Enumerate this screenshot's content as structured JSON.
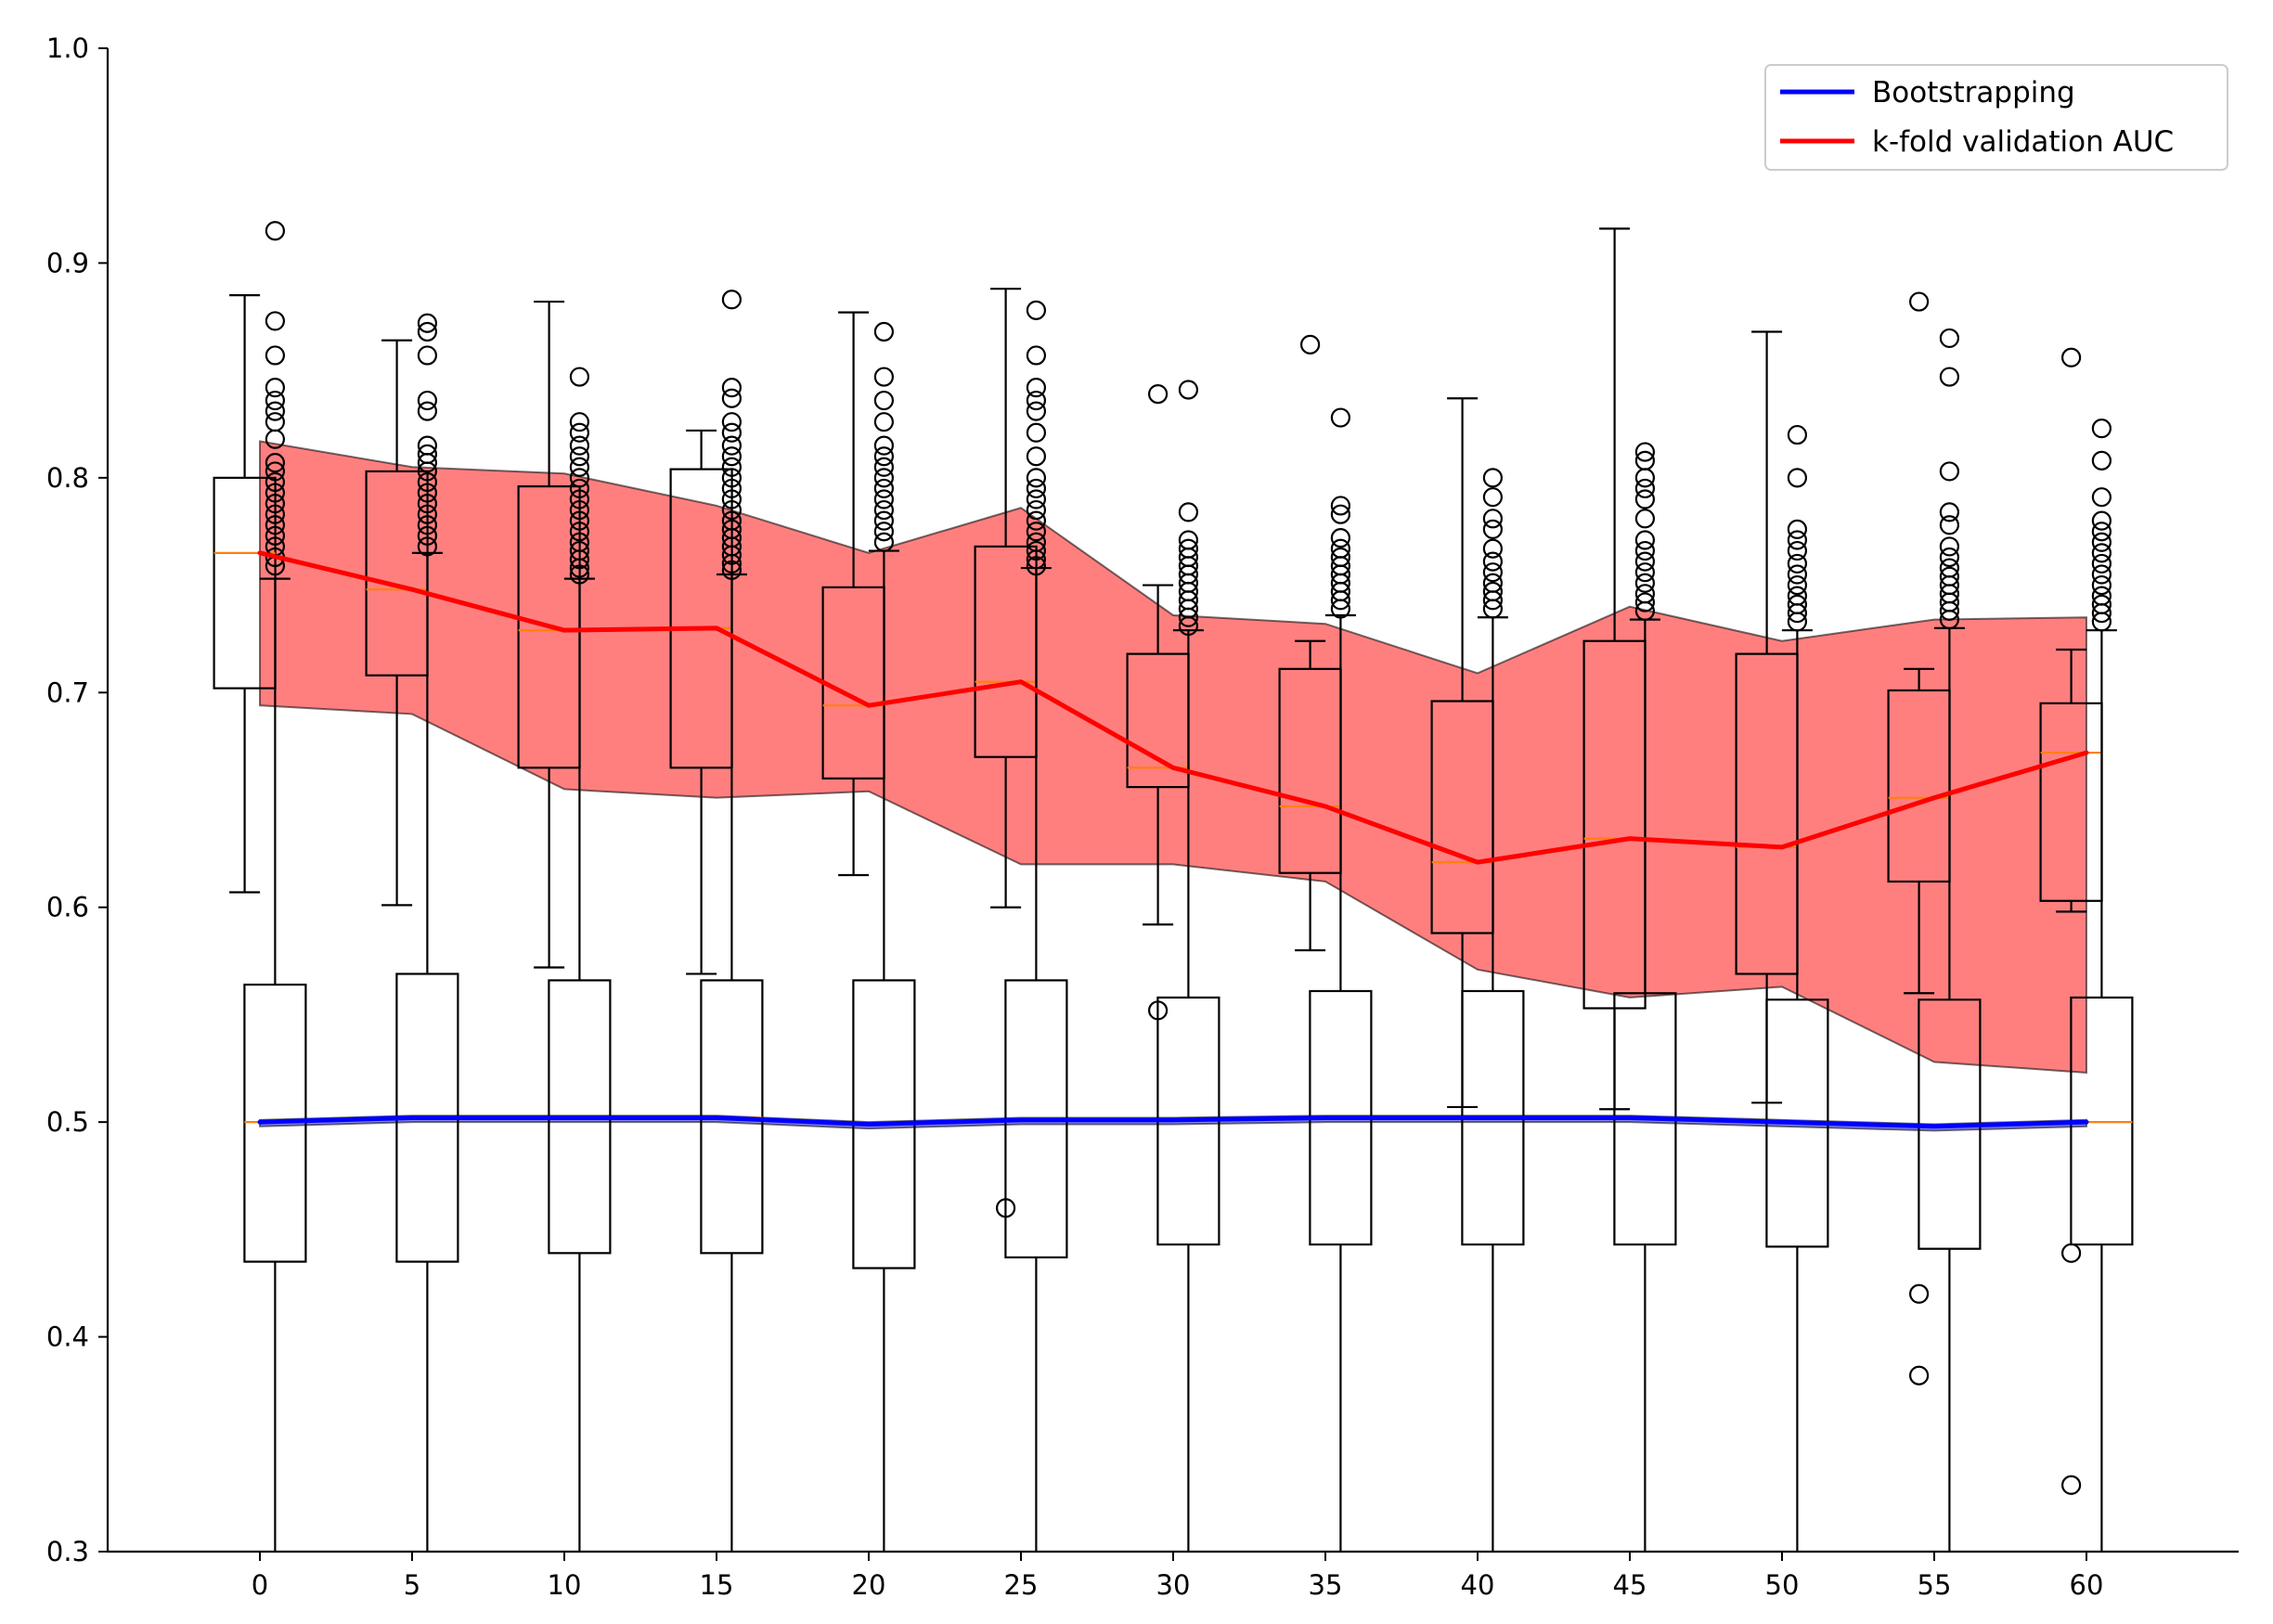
{
  "chart_data": {
    "type": "box",
    "title": "",
    "xlabel": "",
    "ylabel": "",
    "xlim": [
      -5,
      65
    ],
    "ylim": [
      0.3,
      1.0
    ],
    "x_ticks": [
      0,
      5,
      10,
      15,
      20,
      25,
      30,
      35,
      40,
      45,
      50,
      55,
      60
    ],
    "y_ticks": [
      0.3,
      0.4,
      0.5,
      0.6,
      0.7,
      0.8,
      0.9,
      1.0
    ],
    "y_tick_labels": [
      "0.3",
      "0.4",
      "0.5",
      "0.6",
      "0.7",
      "0.8",
      "0.9",
      "1.0"
    ],
    "legend": {
      "placement": "top-right",
      "entries": [
        {
          "label": "Bootstrapping",
          "color": "#0000ff"
        },
        {
          "label": "k-fold validation AUC",
          "color": "#ff0000"
        }
      ]
    },
    "colors": {
      "band": "#ff0000",
      "median": "#ff7f0e",
      "box": "#000000"
    },
    "series": [
      {
        "name": "k-fold validation AUC",
        "color": "#ff0000",
        "x": [
          0,
          5,
          10,
          15,
          20,
          25,
          30,
          35,
          40,
          45,
          50,
          55,
          60
        ],
        "mean": [
          0.765,
          0.748,
          0.729,
          0.73,
          0.694,
          0.705,
          0.665,
          0.647,
          0.621,
          0.632,
          0.628,
          0.651,
          0.672
        ],
        "band_upper": [
          0.817,
          0.805,
          0.802,
          0.787,
          0.765,
          0.786,
          0.736,
          0.732,
          0.709,
          0.74,
          0.724,
          0.734,
          0.735
        ],
        "band_lower": [
          0.694,
          0.69,
          0.655,
          0.651,
          0.654,
          0.62,
          0.62,
          0.612,
          0.571,
          0.558,
          0.563,
          0.528,
          0.523
        ],
        "boxes": [
          {
            "x": -0.5,
            "q1": 0.702,
            "q3": 0.8,
            "median": 0.765,
            "whislo": 0.607,
            "whishi": 0.885,
            "fliers": []
          },
          {
            "x": 4.5,
            "q1": 0.708,
            "q3": 0.803,
            "median": 0.748,
            "whislo": 0.601,
            "whishi": 0.864,
            "fliers": []
          },
          {
            "x": 9.5,
            "q1": 0.665,
            "q3": 0.796,
            "median": 0.729,
            "whislo": 0.572,
            "whishi": 0.882,
            "fliers": []
          },
          {
            "x": 14.5,
            "q1": 0.665,
            "q3": 0.804,
            "median": 0.73,
            "whislo": 0.569,
            "whishi": 0.822,
            "fliers": []
          },
          {
            "x": 19.5,
            "q1": 0.66,
            "q3": 0.749,
            "median": 0.694,
            "whislo": 0.615,
            "whishi": 0.877,
            "fliers": []
          },
          {
            "x": 24.5,
            "q1": 0.67,
            "q3": 0.768,
            "median": 0.705,
            "whislo": 0.6,
            "whishi": 0.888,
            "fliers": [
              0.46
            ]
          },
          {
            "x": 29.5,
            "q1": 0.656,
            "q3": 0.718,
            "median": 0.665,
            "whislo": 0.592,
            "whishi": 0.75,
            "fliers": [
              0.839,
              0.552
            ]
          },
          {
            "x": 34.5,
            "q1": 0.616,
            "q3": 0.711,
            "median": 0.647,
            "whislo": 0.58,
            "whishi": 0.724,
            "fliers": [
              0.862
            ]
          },
          {
            "x": 39.5,
            "q1": 0.588,
            "q3": 0.696,
            "median": 0.621,
            "whislo": 0.507,
            "whishi": 0.837,
            "fliers": []
          },
          {
            "x": 44.5,
            "q1": 0.553,
            "q3": 0.724,
            "median": 0.632,
            "whislo": 0.506,
            "whishi": 0.916,
            "fliers": []
          },
          {
            "x": 49.5,
            "q1": 0.569,
            "q3": 0.718,
            "median": 0.628,
            "whislo": 0.509,
            "whishi": 0.868,
            "fliers": []
          },
          {
            "x": 54.5,
            "q1": 0.612,
            "q3": 0.701,
            "median": 0.651,
            "whislo": 0.56,
            "whishi": 0.711,
            "fliers": [
              0.882,
              0.42,
              0.382
            ]
          },
          {
            "x": 59.5,
            "q1": 0.603,
            "q3": 0.695,
            "median": 0.672,
            "whislo": 0.598,
            "whishi": 0.72,
            "fliers": [
              0.856,
              0.439,
              0.331
            ]
          }
        ]
      },
      {
        "name": "Bootstrapping",
        "color": "#0000ff",
        "x": [
          0,
          5,
          10,
          15,
          20,
          25,
          30,
          35,
          40,
          45,
          50,
          55,
          60
        ],
        "mean": [
          0.5,
          0.502,
          0.502,
          0.502,
          0.499,
          0.501,
          0.501,
          0.502,
          0.502,
          0.502,
          0.5,
          0.498,
          0.5
        ],
        "band_upper": [
          0.501,
          0.503,
          0.503,
          0.503,
          0.5,
          0.502,
          0.502,
          0.503,
          0.503,
          0.503,
          0.501,
          0.499,
          0.501
        ],
        "band_lower": [
          0.498,
          0.5,
          0.5,
          0.5,
          0.497,
          0.499,
          0.499,
          0.5,
          0.5,
          0.5,
          0.498,
          0.496,
          0.498
        ],
        "boxes": [
          {
            "x": 0.5,
            "q1": 0.435,
            "q3": 0.564,
            "median": 0.5,
            "whislo": 0.29,
            "whishi": 0.753,
            "fliers": [
              0.915,
              0.873,
              0.857,
              0.842,
              0.836,
              0.831,
              0.826,
              0.818,
              0.807,
              0.803,
              0.798,
              0.793,
              0.788,
              0.783,
              0.778,
              0.773,
              0.768,
              0.763,
              0.759
            ]
          },
          {
            "x": 5.5,
            "q1": 0.435,
            "q3": 0.569,
            "median": 0.502,
            "whislo": 0.29,
            "whishi": 0.765,
            "fliers": [
              0.872,
              0.868,
              0.857,
              0.836,
              0.831,
              0.815,
              0.811,
              0.807,
              0.803,
              0.798,
              0.793,
              0.788,
              0.783,
              0.778,
              0.773,
              0.768
            ]
          },
          {
            "x": 10.5,
            "q1": 0.439,
            "q3": 0.566,
            "median": 0.502,
            "whislo": 0.29,
            "whishi": 0.753,
            "fliers": [
              0.847,
              0.826,
              0.821,
              0.815,
              0.81,
              0.805,
              0.8,
              0.795,
              0.79,
              0.785,
              0.78,
              0.775,
              0.77,
              0.766,
              0.762,
              0.758,
              0.755
            ]
          },
          {
            "x": 15.5,
            "q1": 0.439,
            "q3": 0.566,
            "median": 0.502,
            "whislo": 0.29,
            "whishi": 0.755,
            "fliers": [
              0.883,
              0.842,
              0.837,
              0.826,
              0.821,
              0.815,
              0.81,
              0.805,
              0.8,
              0.795,
              0.79,
              0.785,
              0.78,
              0.776,
              0.772,
              0.768,
              0.764,
              0.76,
              0.757
            ]
          },
          {
            "x": 20.5,
            "q1": 0.432,
            "q3": 0.566,
            "median": 0.499,
            "whislo": 0.29,
            "whishi": 0.766,
            "fliers": [
              0.868,
              0.847,
              0.836,
              0.826,
              0.815,
              0.81,
              0.805,
              0.8,
              0.795,
              0.79,
              0.785,
              0.78,
              0.775,
              0.77
            ]
          },
          {
            "x": 25.5,
            "q1": 0.437,
            "q3": 0.566,
            "median": 0.501,
            "whislo": 0.29,
            "whishi": 0.758,
            "fliers": [
              0.878,
              0.857,
              0.842,
              0.836,
              0.831,
              0.821,
              0.81,
              0.8,
              0.795,
              0.79,
              0.785,
              0.78,
              0.775,
              0.77,
              0.766,
              0.762,
              0.759
            ]
          },
          {
            "x": 30.5,
            "q1": 0.443,
            "q3": 0.558,
            "median": 0.501,
            "whislo": 0.29,
            "whishi": 0.729,
            "fliers": [
              0.841,
              0.784,
              0.771,
              0.767,
              0.763,
              0.759,
              0.755,
              0.751,
              0.747,
              0.743,
              0.739,
              0.735,
              0.731
            ]
          },
          {
            "x": 35.5,
            "q1": 0.443,
            "q3": 0.561,
            "median": 0.502,
            "whislo": 0.29,
            "whishi": 0.736,
            "fliers": [
              0.828,
              0.787,
              0.783,
              0.772,
              0.767,
              0.763,
              0.759,
              0.755,
              0.751,
              0.747,
              0.743,
              0.739
            ]
          },
          {
            "x": 40.5,
            "q1": 0.443,
            "q3": 0.561,
            "median": 0.502,
            "whislo": 0.29,
            "whishi": 0.735,
            "fliers": [
              0.8,
              0.791,
              0.781,
              0.776,
              0.767,
              0.761,
              0.756,
              0.751,
              0.747,
              0.743,
              0.739
            ]
          },
          {
            "x": 45.5,
            "q1": 0.443,
            "q3": 0.56,
            "median": 0.502,
            "whislo": 0.29,
            "whishi": 0.734,
            "fliers": [
              0.812,
              0.808,
              0.8,
              0.795,
              0.79,
              0.781,
              0.771,
              0.766,
              0.761,
              0.756,
              0.751,
              0.746,
              0.742,
              0.738
            ]
          },
          {
            "x": 50.5,
            "q1": 0.442,
            "q3": 0.557,
            "median": 0.5,
            "whislo": 0.29,
            "whishi": 0.729,
            "fliers": [
              0.82,
              0.8,
              0.776,
              0.771,
              0.766,
              0.76,
              0.755,
              0.75,
              0.745,
              0.741,
              0.737,
              0.733
            ]
          },
          {
            "x": 55.5,
            "q1": 0.441,
            "q3": 0.557,
            "median": 0.498,
            "whislo": 0.29,
            "whishi": 0.73,
            "fliers": [
              0.865,
              0.847,
              0.803,
              0.784,
              0.778,
              0.768,
              0.763,
              0.758,
              0.754,
              0.75,
              0.746,
              0.742,
              0.738,
              0.734
            ]
          },
          {
            "x": 60.5,
            "q1": 0.443,
            "q3": 0.558,
            "median": 0.5,
            "whislo": 0.29,
            "whishi": 0.729,
            "fliers": [
              0.823,
              0.808,
              0.791,
              0.78,
              0.775,
              0.77,
              0.765,
              0.76,
              0.755,
              0.75,
              0.745,
              0.741,
              0.737,
              0.733
            ]
          }
        ]
      }
    ]
  }
}
